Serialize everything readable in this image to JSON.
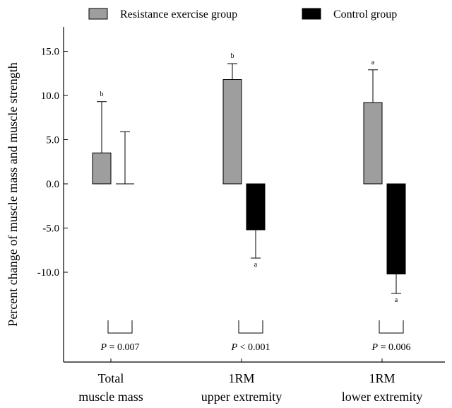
{
  "chart_data": {
    "type": "bar",
    "title": "",
    "xlabel": "",
    "ylabel": "Percent change of muscle mass and muscle strength",
    "ylim": [
      -15,
      17
    ],
    "yticks": [
      15.0,
      10.0,
      5.0,
      0.0,
      -5.0,
      -10.0
    ],
    "ytick_labels": [
      "15.0",
      "10.0",
      "5.0",
      "0.0",
      "-5.0",
      "-10.0"
    ],
    "legend_position": "top",
    "grid": false,
    "categories": [
      {
        "line1": "Total",
        "line2": "muscle mass"
      },
      {
        "line1": "1RM",
        "line2": "upper extremity"
      },
      {
        "line1": "1RM",
        "line2": "lower extremity"
      }
    ],
    "series": [
      {
        "name": "Resistance exercise group",
        "color": "#9e9e9e",
        "values": [
          3.5,
          11.8,
          9.2
        ],
        "errors": [
          5.8,
          1.8,
          3.7
        ],
        "sig": [
          "b",
          "b",
          "a"
        ]
      },
      {
        "name": "Control group",
        "color": "#000000",
        "values": [
          0.0,
          -5.2,
          -10.2
        ],
        "errors": [
          5.9,
          3.2,
          2.2
        ],
        "sig": [
          "",
          "a",
          "a"
        ]
      }
    ],
    "p_values": [
      {
        "label": "P",
        "text": " = 0.007"
      },
      {
        "label": "P",
        "text": " < 0.001"
      },
      {
        "label": "P",
        "text": " = 0.006"
      }
    ]
  }
}
